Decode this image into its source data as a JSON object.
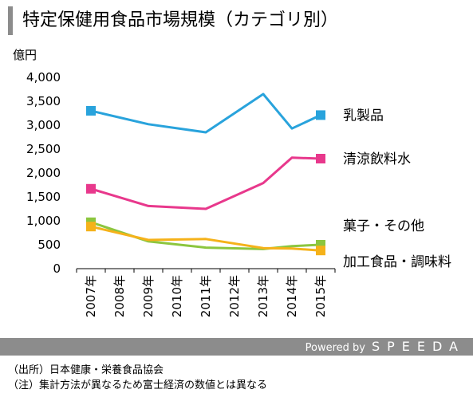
{
  "header": {
    "title": "特定保健用食品市場規模（カテゴリ別）"
  },
  "unit_label": "億円",
  "footer": {
    "powered_prefix": "Powered by",
    "brand": "SPEEDA",
    "source_note": "（出所）日本健康・栄養食品協会",
    "aggregation_note": "（注）集計方法が異なるため富士経済の数値とは異なる"
  },
  "chart_data": {
    "type": "line",
    "title": "特定保健用食品市場規模（カテゴリ別）",
    "ylabel": "億円",
    "xlabel": "",
    "x": [
      "2007年",
      "2009年",
      "2011年",
      "2013年",
      "2014年",
      "2015年"
    ],
    "categories": [
      "2007年",
      "2008年",
      "2009年",
      "2010年",
      "2011年",
      "2012年",
      "2013年",
      "2014年",
      "2015年"
    ],
    "ylim": [
      0,
      4000
    ],
    "yticks": [
      0,
      500,
      1000,
      1500,
      2000,
      2500,
      3000,
      3500,
      4000
    ],
    "ytick_labels": [
      "0",
      "500",
      "1,000",
      "1,500",
      "2,000",
      "2,500",
      "3,000",
      "3,500",
      "4,000"
    ],
    "grid": false,
    "series": [
      {
        "name": "乳製品",
        "color": "#29a3dc",
        "values": [
          3300,
          3020,
          2850,
          3650,
          2930,
          3210
        ]
      },
      {
        "name": "清涼飲料水",
        "color": "#e8388c",
        "values": [
          1670,
          1310,
          1250,
          1790,
          2320,
          2300
        ]
      },
      {
        "name": "菓子・その他",
        "color": "#8cc63f",
        "values": [
          970,
          570,
          440,
          410,
          470,
          500
        ]
      },
      {
        "name": "加工食品・調味料",
        "color": "#f5b21a",
        "values": [
          880,
          600,
          620,
          430,
          420,
          380
        ]
      }
    ]
  }
}
